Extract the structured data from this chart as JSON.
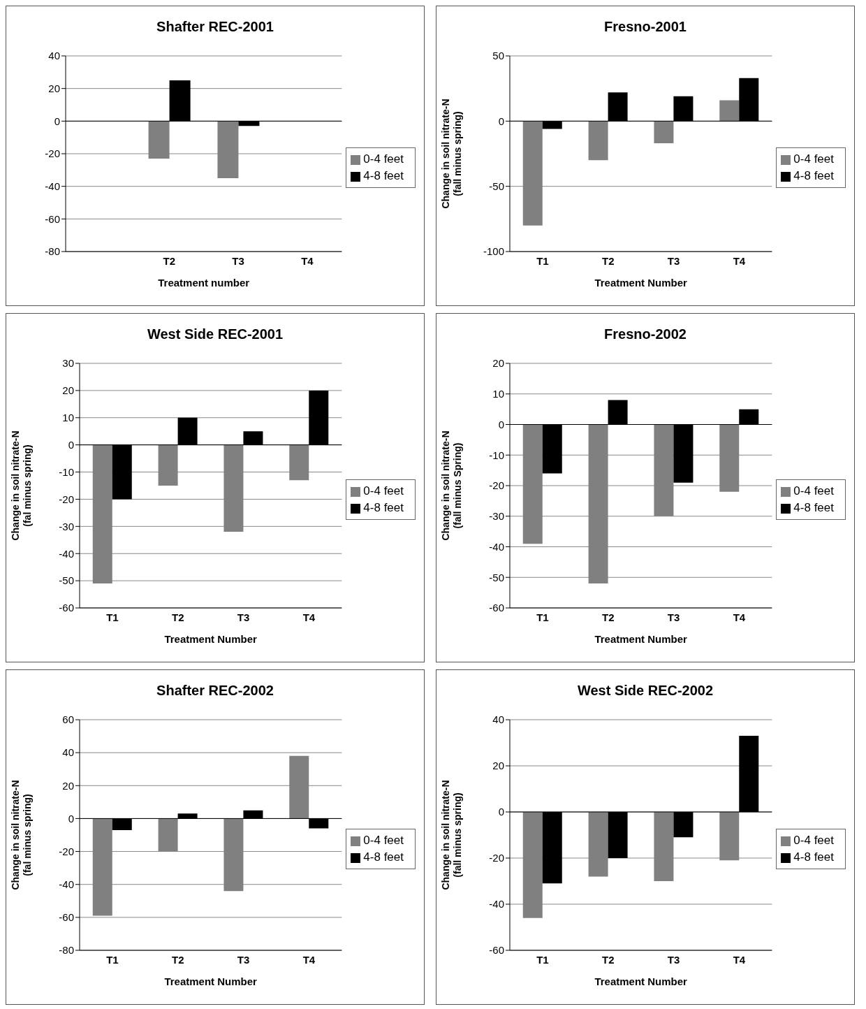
{
  "chart_data": [
    {
      "type": "bar",
      "title": "Shafter REC-2001",
      "xlabel": "Treatment number",
      "categories": [
        null,
        "T2",
        "T3",
        "T4"
      ],
      "series": [
        {
          "name": "0-4 feet",
          "color": "#808080",
          "values": [
            null,
            -23,
            -35,
            null
          ]
        },
        {
          "name": "4-8 feet",
          "color": "#000000",
          "values": [
            null,
            25,
            -3,
            null
          ]
        }
      ],
      "ylim": [
        -80,
        40
      ],
      "yticks": [
        -80,
        -60,
        -40,
        -20,
        0,
        20,
        40
      ],
      "grid": "y",
      "legend": "right"
    },
    {
      "type": "bar",
      "title": "Fresno-2001",
      "xlabel": "Treatment Number",
      "ylabel": "Change in soil nitrate-N (fall minus spring)",
      "categories": [
        "T1",
        "T2",
        "T3",
        "T4"
      ],
      "series": [
        {
          "name": "0-4 feet",
          "color": "#808080",
          "values": [
            -80,
            -30,
            -17,
            16
          ]
        },
        {
          "name": "4-8 feet",
          "color": "#000000",
          "values": [
            -6,
            22,
            19,
            33
          ]
        }
      ],
      "ylim": [
        -100,
        50
      ],
      "yticks": [
        -100,
        -50,
        0,
        50
      ],
      "grid": "y",
      "legend": "right"
    },
    {
      "type": "bar",
      "title": "West Side REC-2001",
      "xlabel": "Treatment Number",
      "ylabel": "Change in soil nitrate-N (fal minus spring)",
      "categories": [
        "T1",
        "T2",
        "T3",
        "T4"
      ],
      "series": [
        {
          "name": "0-4 feet",
          "color": "#808080",
          "values": [
            -51,
            -15,
            -32,
            -13
          ]
        },
        {
          "name": "4-8 feet",
          "color": "#000000",
          "values": [
            -20,
            10,
            5,
            20
          ]
        }
      ],
      "ylim": [
        -60,
        30
      ],
      "yticks": [
        -60,
        -50,
        -40,
        -30,
        -20,
        -10,
        0,
        10,
        20,
        30
      ],
      "grid": "y",
      "legend": "right"
    },
    {
      "type": "bar",
      "title": "Fresno-2002",
      "xlabel": "Treatment Number",
      "ylabel": "Change in soil nitrate-N (fall minus Spring)",
      "categories": [
        "T1",
        "T2",
        "T3",
        "T4"
      ],
      "series": [
        {
          "name": "0-4 feet",
          "color": "#808080",
          "values": [
            -39,
            -52,
            -30,
            -22
          ]
        },
        {
          "name": "4-8 feet",
          "color": "#000000",
          "values": [
            -16,
            8,
            -19,
            5
          ]
        }
      ],
      "ylim": [
        -60,
        20
      ],
      "yticks": [
        -60,
        -50,
        -40,
        -30,
        -20,
        -10,
        0,
        10,
        20
      ],
      "grid": "y",
      "legend": "right"
    },
    {
      "type": "bar",
      "title": "Shafter REC-2002",
      "xlabel": "Treatment Number",
      "ylabel": "Change in soil nitrate-N (fal minus spring)",
      "categories": [
        "T1",
        "T2",
        "T3",
        "T4"
      ],
      "series": [
        {
          "name": "0-4 feet",
          "color": "#808080",
          "values": [
            -59,
            -20,
            -44,
            38
          ]
        },
        {
          "name": "4-8 feet",
          "color": "#000000",
          "values": [
            -7,
            3,
            5,
            -6
          ]
        }
      ],
      "ylim": [
        -80,
        60
      ],
      "yticks": [
        -80,
        -60,
        -40,
        -20,
        0,
        20,
        40,
        60
      ],
      "grid": "y",
      "legend": "right"
    },
    {
      "type": "bar",
      "title": "West Side REC-2002",
      "xlabel": "Treatment Number",
      "ylabel": "Change in soil nitrate-N (fall minus spring)",
      "categories": [
        "T1",
        "T2",
        "T3",
        "T4"
      ],
      "series": [
        {
          "name": "0-4 feet",
          "color": "#808080",
          "values": [
            -46,
            -28,
            -30,
            -21
          ]
        },
        {
          "name": "4-8 feet",
          "color": "#000000",
          "values": [
            -31,
            -20,
            -11,
            33
          ]
        }
      ],
      "ylim": [
        -60,
        40
      ],
      "yticks": [
        -60,
        -40,
        -20,
        0,
        20,
        40
      ],
      "grid": "y",
      "legend": "right"
    }
  ]
}
